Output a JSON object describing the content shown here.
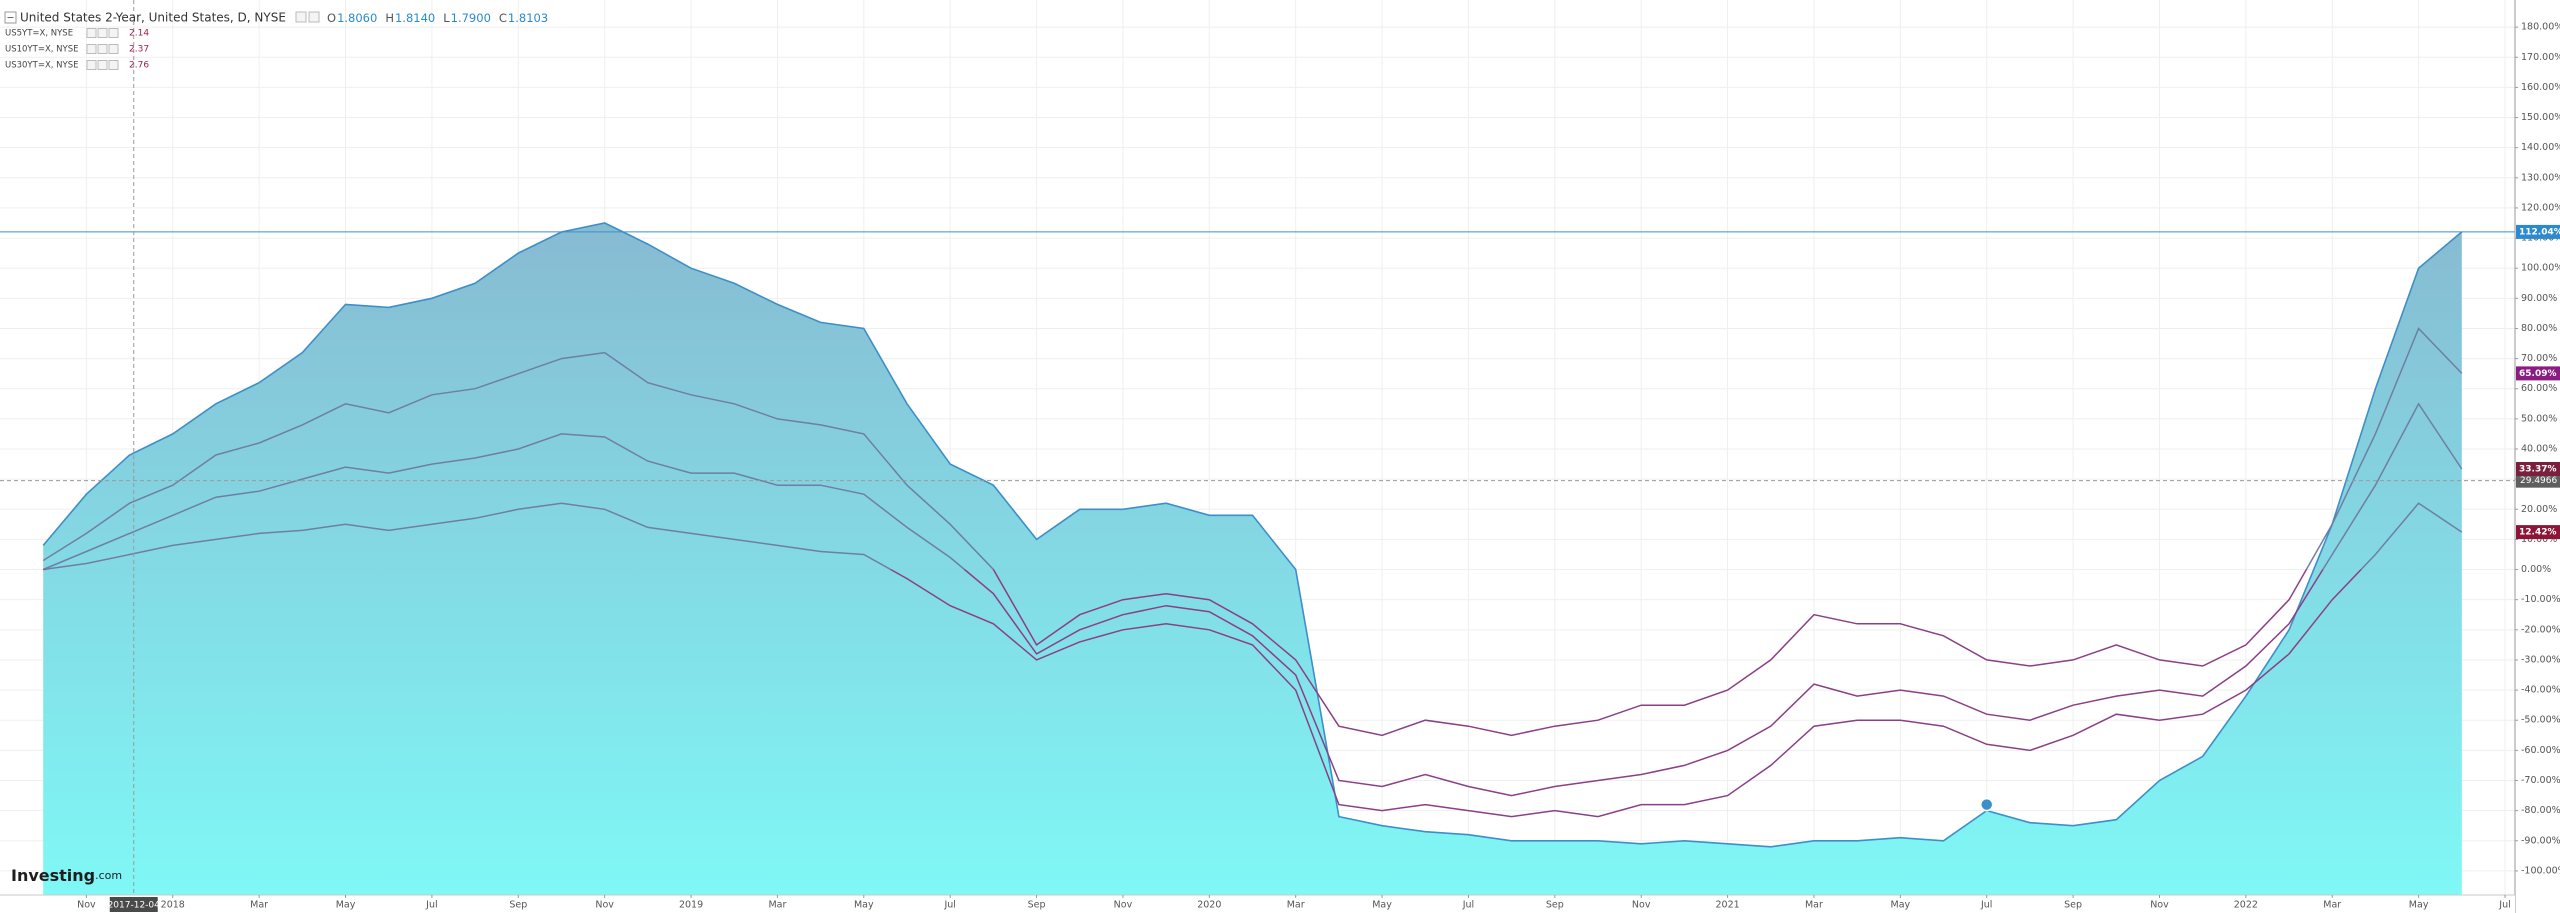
{
  "chart_data": {
    "type": "line",
    "legend": {
      "ohlc": [
        {
          "label": "O",
          "value": "1.8060"
        },
        {
          "label": "H",
          "value": "1.8140"
        },
        {
          "label": "L",
          "value": "1.7900"
        },
        {
          "label": "C",
          "value": "1.8103"
        }
      ]
    },
    "x": [
      "2017-10",
      "2017-11",
      "2017-12",
      "2018-01",
      "2018-02",
      "2018-03",
      "2018-04",
      "2018-05",
      "2018-06",
      "2018-07",
      "2018-08",
      "2018-09",
      "2018-10",
      "2018-11",
      "2018-12",
      "2019-01",
      "2019-02",
      "2019-03",
      "2019-04",
      "2019-05",
      "2019-06",
      "2019-07",
      "2019-08",
      "2019-09",
      "2019-10",
      "2019-11",
      "2019-12",
      "2020-01",
      "2020-02",
      "2020-03",
      "2020-04",
      "2020-05",
      "2020-06",
      "2020-07",
      "2020-08",
      "2020-09",
      "2020-10",
      "2020-11",
      "2020-12",
      "2021-01",
      "2021-02",
      "2021-03",
      "2021-04",
      "2021-05",
      "2021-06",
      "2021-07",
      "2021-08",
      "2021-09",
      "2021-10",
      "2021-11",
      "2021-12",
      "2022-01",
      "2022-02",
      "2022-03",
      "2022-04",
      "2022-05",
      "2022-06"
    ],
    "series": [
      {
        "name": "United States 2-Year, United States, D, NYSE",
        "color": "#3d8fc9",
        "area": true,
        "fill_top": "#8aa6c6",
        "fill_bottom": "#7ff8f6",
        "end_label": "112.04%",
        "label_color": "#2a8ad0",
        "values": [
          8,
          25,
          38,
          45,
          55,
          62,
          72,
          88,
          87,
          90,
          95,
          105,
          112,
          115,
          108,
          100,
          95,
          88,
          82,
          80,
          55,
          35,
          28,
          10,
          20,
          20,
          22,
          18,
          18,
          0,
          -82,
          -85,
          -87,
          -88,
          -90,
          -90,
          -90,
          -91,
          -90,
          -91,
          -92,
          -90,
          -90,
          -89,
          -90,
          -80,
          -84,
          -85,
          -83,
          -70,
          -62,
          -42,
          -20,
          15,
          60,
          100,
          112.04
        ]
      },
      {
        "name": "US5YT=X, NYSE",
        "quote": "2.14",
        "color": "#6f7ea6",
        "negative_color": "#8a3f86",
        "end_label": "65.09%",
        "label_color": "#8b1d82",
        "values": [
          3,
          12,
          22,
          28,
          38,
          42,
          48,
          55,
          52,
          58,
          60,
          65,
          70,
          72,
          62,
          58,
          55,
          50,
          48,
          45,
          28,
          15,
          0,
          -25,
          -15,
          -10,
          -8,
          -10,
          -18,
          -30,
          -52,
          -55,
          -50,
          -52,
          -55,
          -52,
          -50,
          -45,
          -45,
          -40,
          -30,
          -15,
          -18,
          -18,
          -22,
          -30,
          -32,
          -30,
          -25,
          -30,
          -32,
          -25,
          -10,
          15,
          45,
          80,
          65.09
        ]
      },
      {
        "name": "US10YT=X, NYSE",
        "quote": "2.37",
        "color": "#6f7ea6",
        "negative_color": "#8a3f86",
        "end_label": "33.37%",
        "label_color": "#7a1f3d",
        "values": [
          0,
          6,
          12,
          18,
          24,
          26,
          30,
          34,
          32,
          35,
          37,
          40,
          45,
          44,
          36,
          32,
          32,
          28,
          28,
          25,
          14,
          4,
          -8,
          -28,
          -20,
          -15,
          -12,
          -14,
          -22,
          -35,
          -70,
          -72,
          -68,
          -72,
          -75,
          -72,
          -70,
          -68,
          -65,
          -60,
          -52,
          -38,
          -42,
          -40,
          -42,
          -48,
          -50,
          -45,
          -42,
          -40,
          -42,
          -32,
          -18,
          5,
          28,
          55,
          33.37
        ]
      },
      {
        "name": "US30YT=X, NYSE",
        "quote": "2.76",
        "color": "#6f7ea6",
        "negative_color": "#8a3f86",
        "end_label": "12.42%",
        "label_color": "#8e1537",
        "values": [
          0,
          2,
          5,
          8,
          10,
          12,
          13,
          15,
          13,
          15,
          17,
          20,
          22,
          20,
          14,
          12,
          10,
          8,
          6,
          5,
          -3,
          -12,
          -18,
          -30,
          -24,
          -20,
          -18,
          -20,
          -25,
          -40,
          -78,
          -80,
          -78,
          -80,
          -82,
          -80,
          -82,
          -78,
          -78,
          -75,
          -65,
          -52,
          -50,
          -50,
          -52,
          -58,
          -60,
          -55,
          -48,
          -50,
          -48,
          -40,
          -28,
          -10,
          5,
          22,
          12.42
        ]
      }
    ],
    "xlim": [
      "2017-09",
      "2022-07"
    ],
    "xticks": [
      {
        "value": "2017-11",
        "label": "Nov"
      },
      {
        "value": "2018-01",
        "label": "2018"
      },
      {
        "value": "2018-03",
        "label": "Mar"
      },
      {
        "value": "2018-05",
        "label": "May"
      },
      {
        "value": "2018-07",
        "label": "Jul"
      },
      {
        "value": "2018-09",
        "label": "Sep"
      },
      {
        "value": "2018-11",
        "label": "Nov"
      },
      {
        "value": "2019-01",
        "label": "2019"
      },
      {
        "value": "2019-03",
        "label": "Mar"
      },
      {
        "value": "2019-05",
        "label": "May"
      },
      {
        "value": "2019-07",
        "label": "Jul"
      },
      {
        "value": "2019-09",
        "label": "Sep"
      },
      {
        "value": "2019-11",
        "label": "Nov"
      },
      {
        "value": "2020-01",
        "label": "2020"
      },
      {
        "value": "2020-03",
        "label": "Mar"
      },
      {
        "value": "2020-05",
        "label": "May"
      },
      {
        "value": "2020-07",
        "label": "Jul"
      },
      {
        "value": "2020-09",
        "label": "Sep"
      },
      {
        "value": "2020-11",
        "label": "Nov"
      },
      {
        "value": "2021-01",
        "label": "2021"
      },
      {
        "value": "2021-03",
        "label": "Mar"
      },
      {
        "value": "2021-05",
        "label": "May"
      },
      {
        "value": "2021-07",
        "label": "Jul"
      },
      {
        "value": "2021-09",
        "label": "Sep"
      },
      {
        "value": "2021-11",
        "label": "Nov"
      },
      {
        "value": "2022-01",
        "label": "2022"
      },
      {
        "value": "2022-03",
        "label": "Mar"
      },
      {
        "value": "2022-05",
        "label": "May"
      },
      {
        "value": "2022-07",
        "label": "Jul"
      }
    ],
    "ylim": [
      -108,
      189
    ],
    "yticks": [
      {
        "value": -100,
        "label": "-100.00%"
      },
      {
        "value": -90,
        "label": "-90.00%"
      },
      {
        "value": -80,
        "label": "-80.00%"
      },
      {
        "value": -70,
        "label": "-70.00%"
      },
      {
        "value": -60,
        "label": "-60.00%"
      },
      {
        "value": -50,
        "label": "-50.00%"
      },
      {
        "value": -40,
        "label": "-40.00%"
      },
      {
        "value": -30,
        "label": "-30.00%"
      },
      {
        "value": -20,
        "label": "-20.00%"
      },
      {
        "value": -10,
        "label": "-10.00%"
      },
      {
        "value": 0,
        "label": "0.00%"
      },
      {
        "value": 10,
        "label": "10.00%"
      },
      {
        "value": 20,
        "label": "20.00%"
      },
      {
        "value": 30,
        "label": "30.00%"
      },
      {
        "value": 40,
        "label": "40.00%"
      },
      {
        "value": 50,
        "label": "50.00%"
      },
      {
        "value": 60,
        "label": "60.00%"
      },
      {
        "value": 70,
        "label": "70.00%"
      },
      {
        "value": 80,
        "label": "80.00%"
      },
      {
        "value": 90,
        "label": "90.00%"
      },
      {
        "value": 100,
        "label": "100.00%"
      },
      {
        "value": 110,
        "label": "110.00%"
      },
      {
        "value": 120,
        "label": "120.00%"
      },
      {
        "value": 130,
        "label": "130.00%"
      },
      {
        "value": 140,
        "label": "140.00%"
      },
      {
        "value": 150,
        "label": "150.00%"
      },
      {
        "value": 160,
        "label": "160.00%"
      },
      {
        "value": 170,
        "label": "170.00%"
      },
      {
        "value": 180,
        "label": "180.00%"
      }
    ],
    "grid": true,
    "crosshair": {
      "x": "2017-12-04",
      "y": 29.4966
    },
    "watermark": {
      "brand": "Investing",
      "suffix": ".com"
    }
  }
}
